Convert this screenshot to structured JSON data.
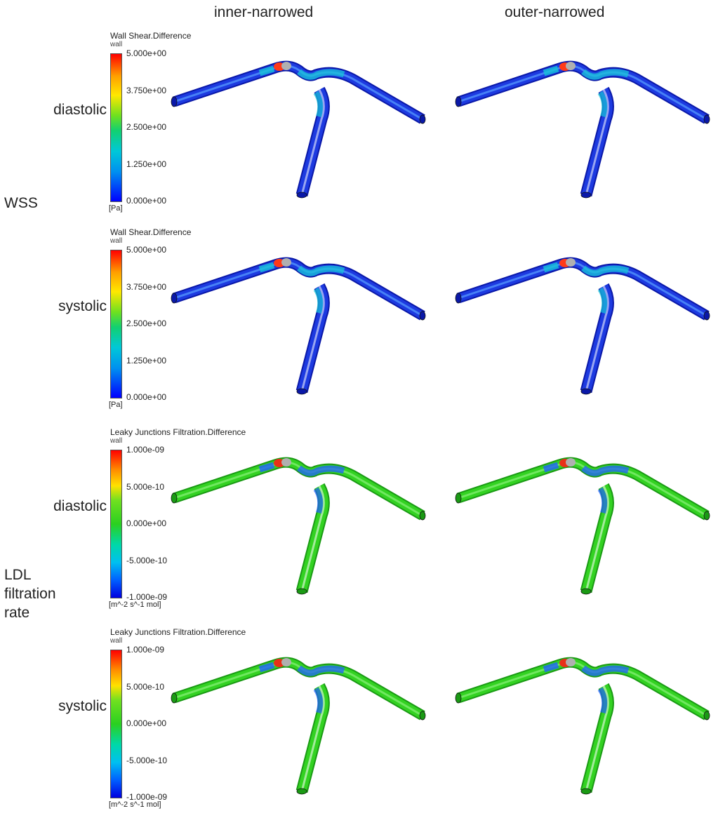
{
  "columns": [
    "inner-narrowed",
    "outer-narrowed"
  ],
  "groups": [
    {
      "label": "WSS",
      "colorbar": {
        "title": "Wall Shear.Difference",
        "subtitle": "wall",
        "ticks": [
          "5.000e+00",
          "3.750e+00",
          "2.500e+00",
          "1.250e+00",
          "0.000e+00"
        ],
        "unit": "[Pa]"
      },
      "rows": [
        {
          "label": "diastolic",
          "colors": {
            "body": "#1d3ae0",
            "dark": "#0a18a8",
            "light": "#5aa0ff",
            "accent": "#17c4d8",
            "hot": "#ff3a18"
          }
        },
        {
          "label": "systolic",
          "colors": {
            "body": "#1d3ae0",
            "dark": "#0a18a8",
            "light": "#5aa0ff",
            "accent": "#17c4d8",
            "hot": "#ff3a18"
          }
        }
      ]
    },
    {
      "label": "LDL filtration rate",
      "colorbar": {
        "title": "Leaky Junctions Filtration.Difference",
        "subtitle": "wall",
        "ticks": [
          "1.000e-09",
          "5.000e-10",
          "0.000e+00",
          "-5.000e-10",
          "-1.000e-09"
        ],
        "unit": "[m^-2 s^-1 mol]"
      },
      "rows": [
        {
          "label": "diastolic",
          "colors": {
            "body": "#33d222",
            "dark": "#1a9a14",
            "light": "#8af07a",
            "accent": "#2060ff",
            "hot": "#e83018"
          }
        },
        {
          "label": "systolic",
          "colors": {
            "body": "#33d222",
            "dark": "#1a9a14",
            "light": "#8af07a",
            "accent": "#2060ff",
            "hot": "#e83018"
          }
        }
      ]
    }
  ]
}
